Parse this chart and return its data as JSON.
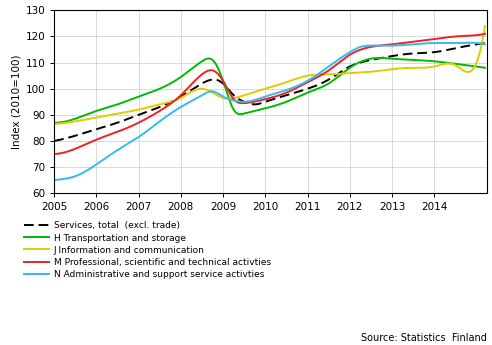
{
  "ylabel": "Index (2010=100)",
  "ylim": [
    60,
    130
  ],
  "yticks": [
    60,
    70,
    80,
    90,
    100,
    110,
    120,
    130
  ],
  "xlim": [
    2005.0,
    2015.25
  ],
  "xticks": [
    2005,
    2006,
    2007,
    2008,
    2009,
    2010,
    2011,
    2012,
    2013,
    2014
  ],
  "source": "Source: Statistics  Finland",
  "legend": [
    "Services, total  (excl. trade)",
    "H Transportation and storage",
    "J Information and communication",
    "M Professional, scientific and technical activties",
    "N Administrative and support service activties"
  ],
  "line_colors": [
    "#000000",
    "#00bb00",
    "#ddcc00",
    "#ee2222",
    "#33bbee"
  ],
  "services_ctrl_x": [
    2005.0,
    2005.5,
    2006.0,
    2006.5,
    2007.0,
    2007.5,
    2008.0,
    2008.5,
    2008.75,
    2009.0,
    2009.25,
    2009.5,
    2009.75,
    2010.0,
    2010.5,
    2011.0,
    2011.5,
    2012.0,
    2012.5,
    2013.0,
    2013.5,
    2014.0,
    2014.5,
    2015.0,
    2015.2
  ],
  "services_ctrl_y": [
    80.0,
    82.0,
    84.5,
    87.0,
    90.0,
    93.0,
    97.0,
    102.0,
    103.5,
    102.0,
    97.5,
    95.0,
    94.0,
    95.0,
    97.5,
    100.0,
    103.5,
    108.5,
    111.0,
    112.5,
    113.5,
    114.0,
    115.5,
    117.0,
    117.5
  ],
  "H_ctrl_x": [
    2005.0,
    2005.5,
    2006.0,
    2006.5,
    2007.0,
    2007.5,
    2008.0,
    2008.5,
    2008.75,
    2009.0,
    2009.25,
    2009.5,
    2010.0,
    2010.5,
    2011.0,
    2011.5,
    2012.0,
    2012.5,
    2013.0,
    2013.5,
    2014.0,
    2014.5,
    2015.0,
    2015.2
  ],
  "H_ctrl_y": [
    87.0,
    88.5,
    91.5,
    94.0,
    97.0,
    100.0,
    104.5,
    110.5,
    111.0,
    103.0,
    92.0,
    90.5,
    92.5,
    95.0,
    98.5,
    102.0,
    108.0,
    111.5,
    111.5,
    111.0,
    110.5,
    109.5,
    108.5,
    108.0
  ],
  "J_ctrl_x": [
    2005.0,
    2005.5,
    2006.0,
    2006.5,
    2007.0,
    2007.5,
    2008.0,
    2008.5,
    2009.0,
    2009.5,
    2010.0,
    2010.5,
    2011.0,
    2011.5,
    2012.0,
    2012.5,
    2013.0,
    2013.5,
    2014.0,
    2014.5,
    2015.0,
    2015.2
  ],
  "J_ctrl_y": [
    86.5,
    87.5,
    89.0,
    90.5,
    92.0,
    94.0,
    96.5,
    100.0,
    96.5,
    97.5,
    100.0,
    102.5,
    105.0,
    105.5,
    106.0,
    106.5,
    107.5,
    108.0,
    108.5,
    109.0,
    110.0,
    124.0
  ],
  "M_ctrl_x": [
    2005.0,
    2005.5,
    2006.0,
    2006.5,
    2007.0,
    2007.5,
    2008.0,
    2008.5,
    2008.75,
    2009.0,
    2009.25,
    2009.5,
    2010.0,
    2010.5,
    2011.0,
    2011.5,
    2012.0,
    2012.5,
    2013.0,
    2013.5,
    2014.0,
    2014.5,
    2015.0,
    2015.2
  ],
  "M_ctrl_y": [
    75.0,
    77.0,
    80.5,
    83.5,
    87.0,
    91.5,
    97.5,
    105.5,
    107.0,
    103.0,
    96.0,
    94.5,
    96.0,
    98.5,
    102.5,
    107.0,
    113.0,
    116.0,
    117.0,
    118.0,
    119.0,
    120.0,
    120.5,
    121.0
  ],
  "N_ctrl_x": [
    2005.0,
    2005.25,
    2005.5,
    2006.0,
    2006.5,
    2007.0,
    2007.5,
    2008.0,
    2008.5,
    2008.75,
    2009.0,
    2009.25,
    2009.5,
    2010.0,
    2010.5,
    2011.0,
    2011.5,
    2012.0,
    2012.25,
    2012.5,
    2013.0,
    2013.5,
    2014.0,
    2014.5,
    2015.0,
    2015.2
  ],
  "N_ctrl_y": [
    65.0,
    65.5,
    66.5,
    71.0,
    76.5,
    81.5,
    87.5,
    93.0,
    97.5,
    99.0,
    97.0,
    95.5,
    95.0,
    97.0,
    99.5,
    103.0,
    108.5,
    114.0,
    116.0,
    116.5,
    116.5,
    117.0,
    117.5,
    117.5,
    117.5,
    117.0
  ]
}
